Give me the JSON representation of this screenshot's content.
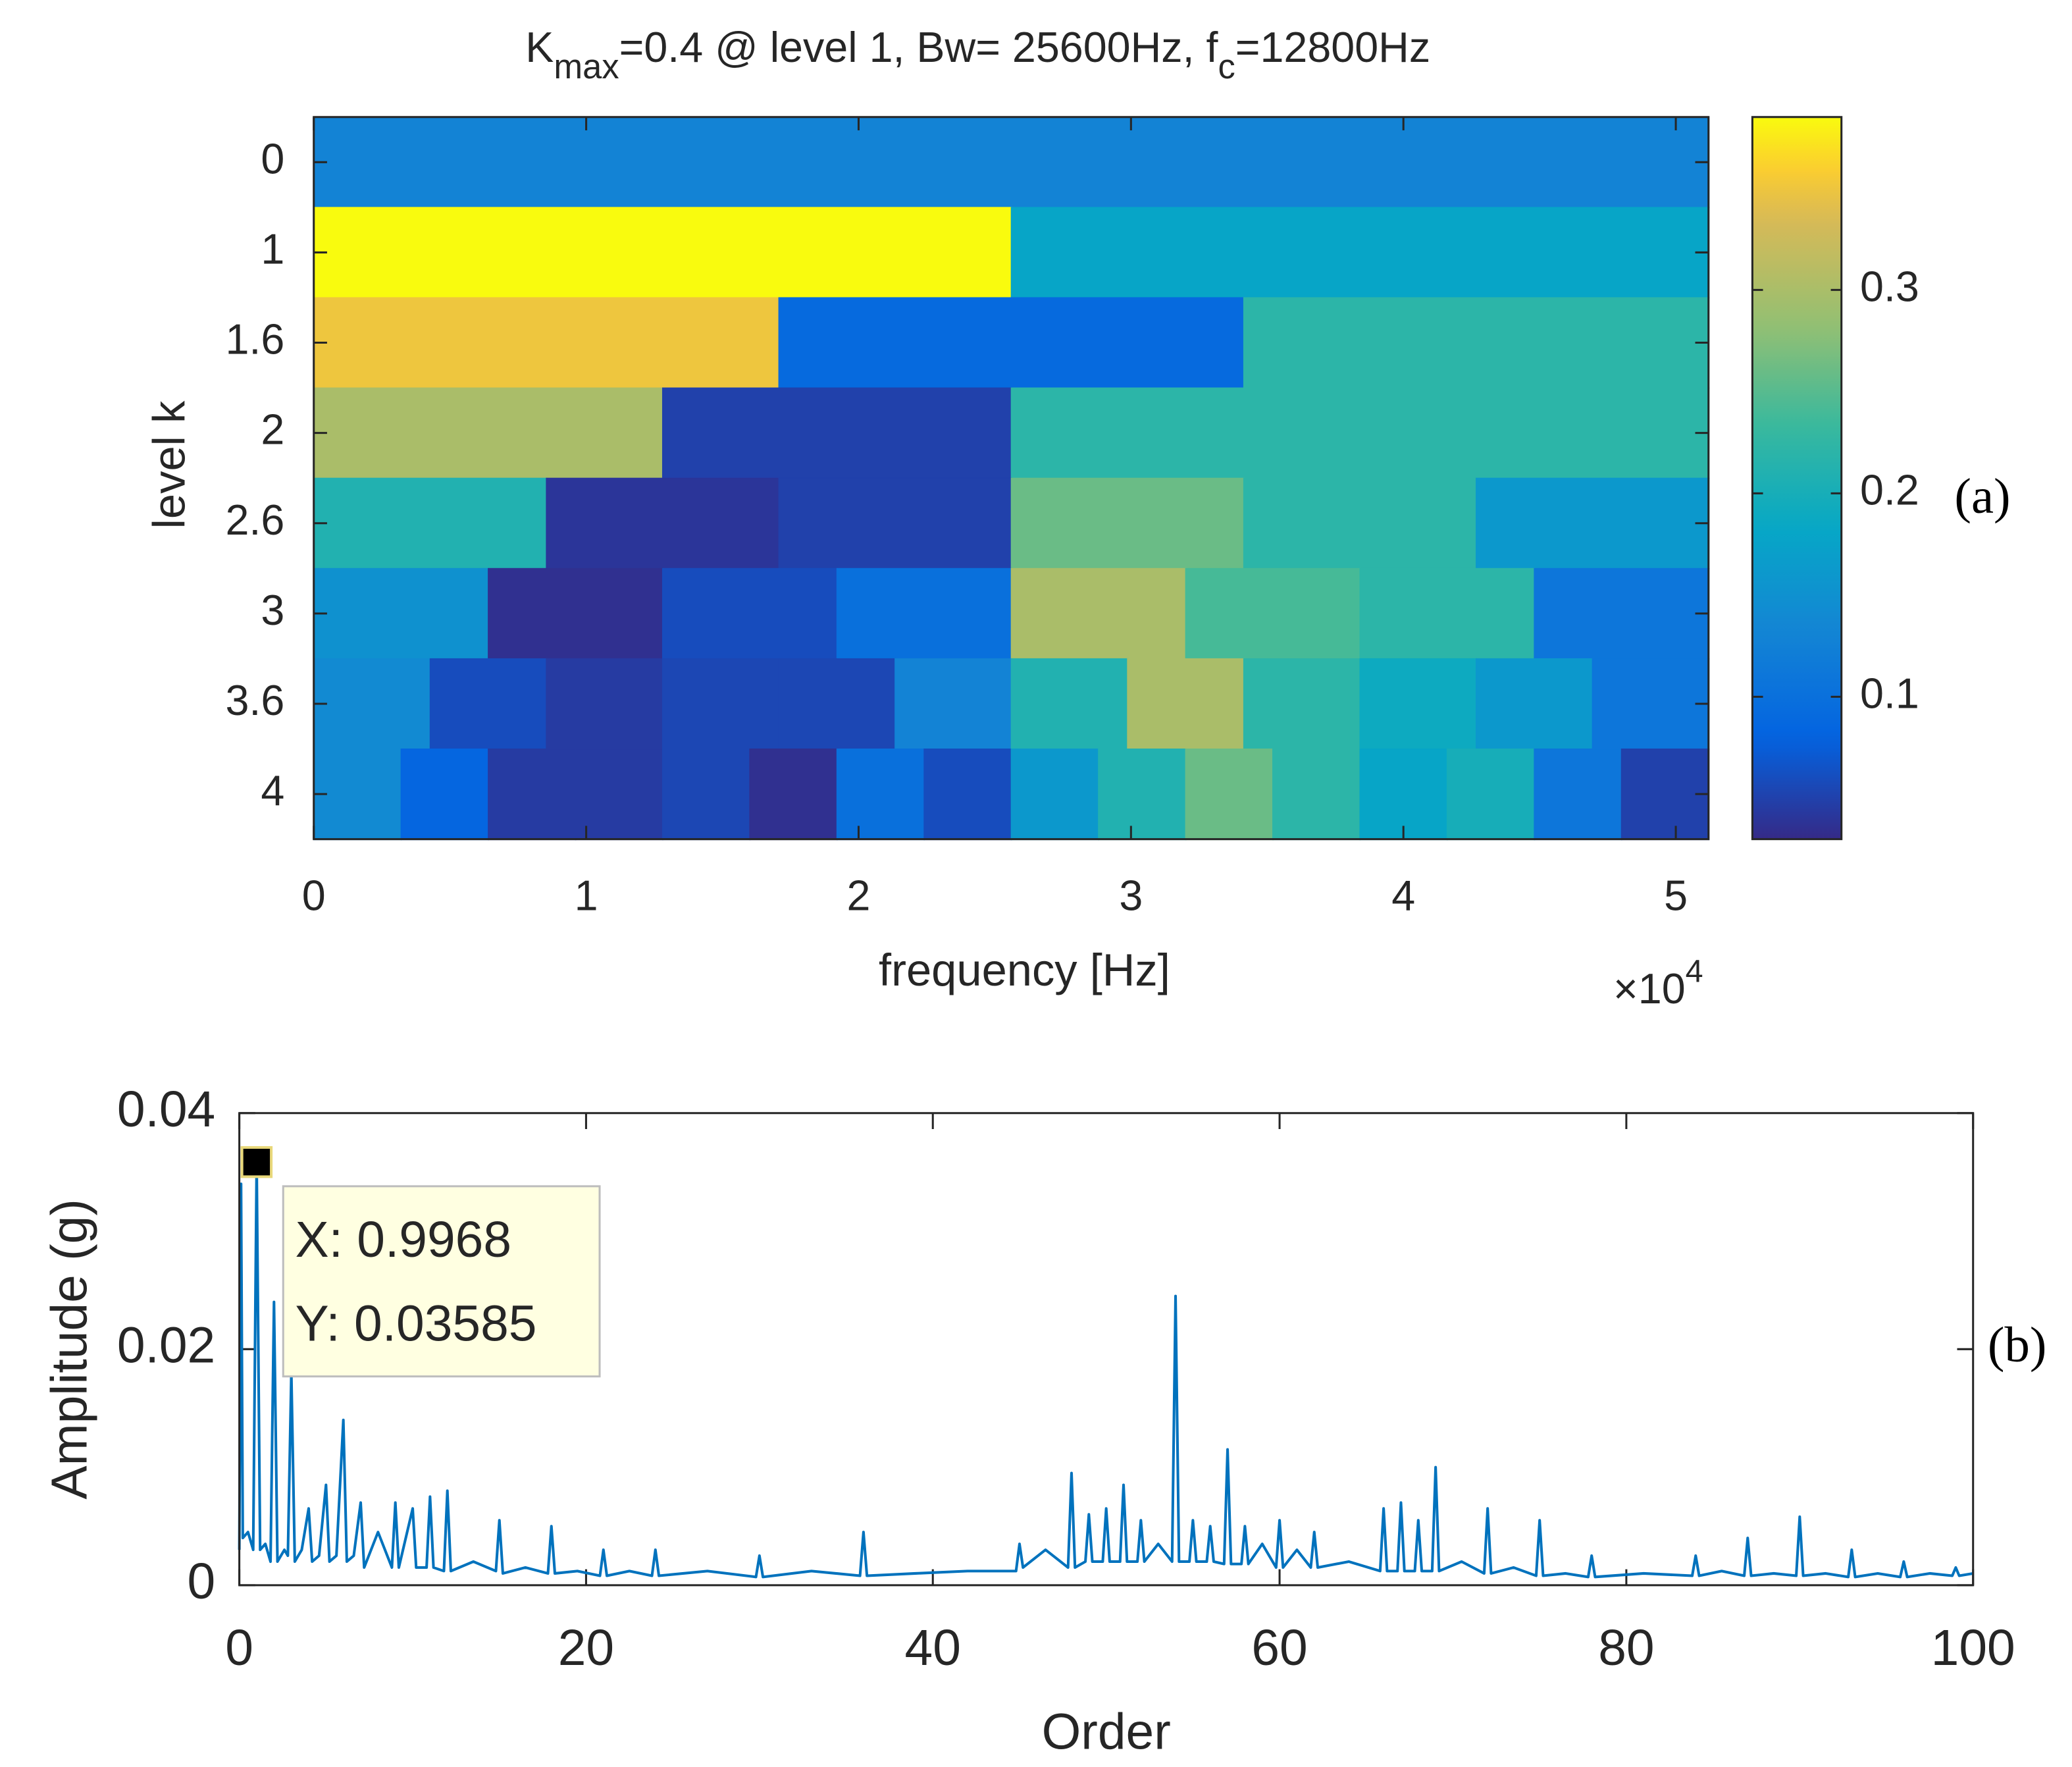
{
  "chart_data": [
    {
      "type": "heatmap",
      "title": [
        "K",
        "max",
        "=0.4 @ level 1, Bw= 25600Hz, f",
        "c",
        "=12800Hz"
      ],
      "x_label": "frequency [Hz]",
      "y_label": "level k",
      "x_multiplier": {
        "base": "×10",
        "exponent": "4"
      },
      "annotation": "(a)",
      "categories": [
        "0",
        "1",
        "1.6",
        "2",
        "2.6",
        "3",
        "3.6",
        "4"
      ],
      "values": [
        [
          0.13
        ],
        [
          0.385,
          0.18
        ],
        [
          0.35,
          0.09,
          0.22
        ],
        [
          0.3,
          0.05,
          0.22,
          0.22
        ],
        [
          0.21,
          0.04,
          0.05,
          0.26,
          0.22,
          0.16
        ],
        [
          0.15,
          0.035,
          0.06,
          0.1,
          0.3,
          0.24,
          0.22,
          0.11
        ],
        [
          0.14,
          0.06,
          0.045,
          0.055,
          0.055,
          0.13,
          0.21,
          0.3,
          0.22,
          0.19,
          0.16,
          0.11
        ],
        [
          0.14,
          0.085,
          0.045,
          0.045,
          0.055,
          0.035,
          0.1,
          0.06,
          0.16,
          0.21,
          0.26,
          0.22,
          0.18,
          0.2,
          0.11,
          0.05
        ]
      ],
      "xlim": [
        0,
        5.12
      ],
      "xticks": [
        0,
        1,
        2,
        3,
        4,
        5
      ],
      "colormap": "parula",
      "clim": [
        0.03,
        0.385
      ],
      "cticks": [
        0.1,
        0.2,
        0.3
      ]
    },
    {
      "type": "line",
      "x_label": "Order",
      "y_label": "Amplitude (g)",
      "annotation": "(b)",
      "color": "#0072bd",
      "xlim": [
        0,
        100
      ],
      "xticks": [
        0,
        20,
        40,
        60,
        80,
        100
      ],
      "ylim": [
        0,
        0.04
      ],
      "yticks": [
        0,
        0.02,
        0.04
      ],
      "datatip": {
        "x": 0.9968,
        "y": 0.03585,
        "x_label": "X: 0.9968",
        "y_label": "Y: 0.03585"
      },
      "x": [
        0,
        0.1,
        0.2,
        0.5,
        0.8,
        1.0,
        1.2,
        1.5,
        1.8,
        2.0,
        2.2,
        2.6,
        2.8,
        3.0,
        3.2,
        3.6,
        4.0,
        4.2,
        4.6,
        5.0,
        5.2,
        5.6,
        6.0,
        6.2,
        6.6,
        7.0,
        7.2,
        8.0,
        8.8,
        9.0,
        9.2,
        10.0,
        10.2,
        10.8,
        11.0,
        11.2,
        11.8,
        12.0,
        12.2,
        13.5,
        14.8,
        15.0,
        15.2,
        16.5,
        17.8,
        18.0,
        18.2,
        19.5,
        20.8,
        21.0,
        21.2,
        22.5,
        23.8,
        24.0,
        24.2,
        27,
        29.8,
        30.0,
        30.2,
        33,
        35.8,
        36.0,
        36.2,
        39,
        42,
        44.8,
        45.0,
        45.2,
        46.5,
        47.8,
        48.0,
        48.2,
        48.8,
        49.0,
        49.2,
        49.8,
        50.0,
        50.2,
        50.8,
        51.0,
        51.2,
        51.8,
        52.0,
        52.2,
        53,
        53.8,
        54.0,
        54.2,
        54.8,
        55.0,
        55.2,
        55.8,
        56.0,
        56.2,
        56.8,
        57.0,
        57.2,
        57.8,
        58.0,
        58.2,
        59,
        59.8,
        60.0,
        60.2,
        61,
        61.8,
        62.0,
        62.2,
        64,
        65.8,
        66.0,
        66.2,
        66.8,
        67.0,
        67.2,
        67.8,
        68.0,
        68.2,
        68.8,
        69.0,
        69.2,
        70.5,
        71.8,
        72.0,
        72.2,
        73.5,
        74.8,
        75.0,
        75.2,
        76.5,
        77.8,
        78.0,
        78.2,
        81,
        83.8,
        84.0,
        84.2,
        85.5,
        86.8,
        87.0,
        87.2,
        88.5,
        89.8,
        90.0,
        90.2,
        91.5,
        92.8,
        93.0,
        93.2,
        94.5,
        95.8,
        96.0,
        96.2,
        97.5,
        98.8,
        99.0,
        99.2,
        100
      ],
      "values": [
        0.003,
        0.034,
        0.004,
        0.0045,
        0.003,
        0.03585,
        0.003,
        0.0035,
        0.002,
        0.024,
        0.002,
        0.003,
        0.0025,
        0.018,
        0.002,
        0.003,
        0.0065,
        0.002,
        0.0025,
        0.0085,
        0.002,
        0.0025,
        0.014,
        0.002,
        0.0025,
        0.007,
        0.0015,
        0.0045,
        0.0015,
        0.007,
        0.0015,
        0.0065,
        0.0015,
        0.0015,
        0.0075,
        0.0015,
        0.0012,
        0.008,
        0.0012,
        0.002,
        0.0012,
        0.0055,
        0.001,
        0.0015,
        0.001,
        0.005,
        0.001,
        0.0012,
        0.0008,
        0.003,
        0.0008,
        0.0012,
        0.0008,
        0.003,
        0.0008,
        0.0012,
        0.0007,
        0.0025,
        0.0007,
        0.0012,
        0.0008,
        0.0045,
        0.0008,
        0.001,
        0.0012,
        0.0012,
        0.0035,
        0.0015,
        0.003,
        0.0015,
        0.0095,
        0.0015,
        0.002,
        0.006,
        0.002,
        0.002,
        0.0065,
        0.002,
        0.002,
        0.0085,
        0.002,
        0.002,
        0.0055,
        0.002,
        0.0035,
        0.002,
        0.0245,
        0.002,
        0.002,
        0.0055,
        0.002,
        0.002,
        0.005,
        0.002,
        0.0018,
        0.0115,
        0.0018,
        0.0018,
        0.005,
        0.0018,
        0.0035,
        0.0015,
        0.0055,
        0.0015,
        0.003,
        0.0015,
        0.0045,
        0.0015,
        0.002,
        0.0012,
        0.0065,
        0.0012,
        0.0012,
        0.007,
        0.0012,
        0.0012,
        0.0055,
        0.0012,
        0.0012,
        0.01,
        0.0012,
        0.002,
        0.001,
        0.0065,
        0.001,
        0.0015,
        0.0008,
        0.0055,
        0.0008,
        0.001,
        0.0007,
        0.0025,
        0.0007,
        0.001,
        0.0008,
        0.0025,
        0.0008,
        0.0012,
        0.0008,
        0.004,
        0.0008,
        0.001,
        0.0008,
        0.0058,
        0.0008,
        0.001,
        0.0007,
        0.003,
        0.0007,
        0.001,
        0.0007,
        0.002,
        0.0007,
        0.001,
        0.0008,
        0.0015,
        0.0008,
        0.001
      ]
    }
  ]
}
